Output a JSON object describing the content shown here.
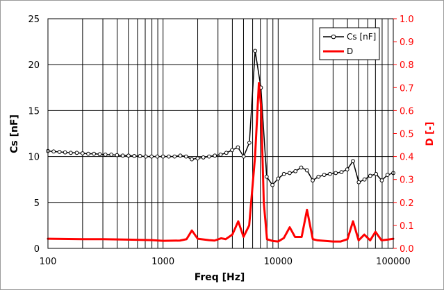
{
  "chart_data": {
    "type": "line",
    "xlabel": "Freq [Hz]",
    "ylabel_left": "Cs [nF]",
    "ylabel_right": "D [-]",
    "x_scale": "log",
    "xlim": [
      100,
      100000
    ],
    "ylim_left": [
      0,
      25
    ],
    "ylim_right": [
      0,
      1.0
    ],
    "x_ticks": [
      "100",
      "1000",
      "10000",
      "100000"
    ],
    "y_ticks_left": [
      "0",
      "5",
      "10",
      "15",
      "20",
      "25"
    ],
    "y_ticks_right": [
      "0.0",
      "0.1",
      "0.2",
      "0.3",
      "0.4",
      "0.5",
      "0.6",
      "0.7",
      "0.8",
      "0.9",
      "1.0"
    ],
    "grid": true,
    "legend_position": "top-right",
    "colors": {
      "cs": "#000000",
      "d": "#ff0000",
      "right_axis": "#ff0000",
      "grid": "#000000"
    },
    "series": [
      {
        "name": "Cs [nF]",
        "axis": "left",
        "marker": "circle",
        "x": [
          100,
          112,
          126,
          141,
          158,
          178,
          200,
          224,
          251,
          282,
          316,
          355,
          398,
          447,
          501,
          562,
          631,
          708,
          794,
          891,
          1000,
          1122,
          1259,
          1413,
          1585,
          1778,
          1995,
          2239,
          2512,
          2818,
          3162,
          3548,
          3981,
          4467,
          5012,
          5623,
          6310,
          7079,
          7943,
          8913,
          10000,
          11220,
          12589,
          14125,
          15849,
          17783,
          19953,
          22387,
          25119,
          28184,
          31623,
          35481,
          39811,
          44668,
          50119,
          56234,
          63096,
          70795,
          79433,
          89125,
          100000
        ],
        "values": [
          10.6,
          10.55,
          10.5,
          10.45,
          10.4,
          10.4,
          10.35,
          10.3,
          10.3,
          10.25,
          10.2,
          10.2,
          10.15,
          10.1,
          10.1,
          10.05,
          10.05,
          10.0,
          10.0,
          10.0,
          10.0,
          10.0,
          10.0,
          10.1,
          10.0,
          9.7,
          9.8,
          9.9,
          10.0,
          10.1,
          10.2,
          10.4,
          10.7,
          11.0,
          10.0,
          11.5,
          21.5,
          17.5,
          7.8,
          6.9,
          7.6,
          8.1,
          8.2,
          8.4,
          8.8,
          8.5,
          7.4,
          7.8,
          8.0,
          8.1,
          8.2,
          8.3,
          8.6,
          9.5,
          7.2,
          7.5,
          7.9,
          8.1,
          7.4,
          8.0,
          8.2
        ]
      },
      {
        "name": "D",
        "axis": "right",
        "marker": "none",
        "x": [
          100,
          200,
          300,
          500,
          800,
          1000,
          1400,
          1600,
          1780,
          2000,
          2500,
          2800,
          3200,
          3500,
          4000,
          4500,
          5000,
          5600,
          6300,
          6800,
          7100,
          7500,
          8000,
          9000,
          10000,
          11200,
          12600,
          14000,
          16000,
          17800,
          20000,
          22000,
          30000,
          35000,
          40000,
          44700,
          50000,
          56000,
          63000,
          70000,
          79000,
          89000,
          100000
        ],
        "values": [
          0.042,
          0.04,
          0.04,
          0.038,
          0.036,
          0.033,
          0.034,
          0.04,
          0.078,
          0.042,
          0.036,
          0.034,
          0.044,
          0.04,
          0.06,
          0.118,
          0.05,
          0.1,
          0.4,
          0.72,
          0.62,
          0.2,
          0.04,
          0.032,
          0.03,
          0.045,
          0.092,
          0.05,
          0.05,
          0.168,
          0.04,
          0.035,
          0.03,
          0.03,
          0.04,
          0.118,
          0.035,
          0.06,
          0.035,
          0.072,
          0.035,
          0.038,
          0.042
        ]
      }
    ]
  }
}
